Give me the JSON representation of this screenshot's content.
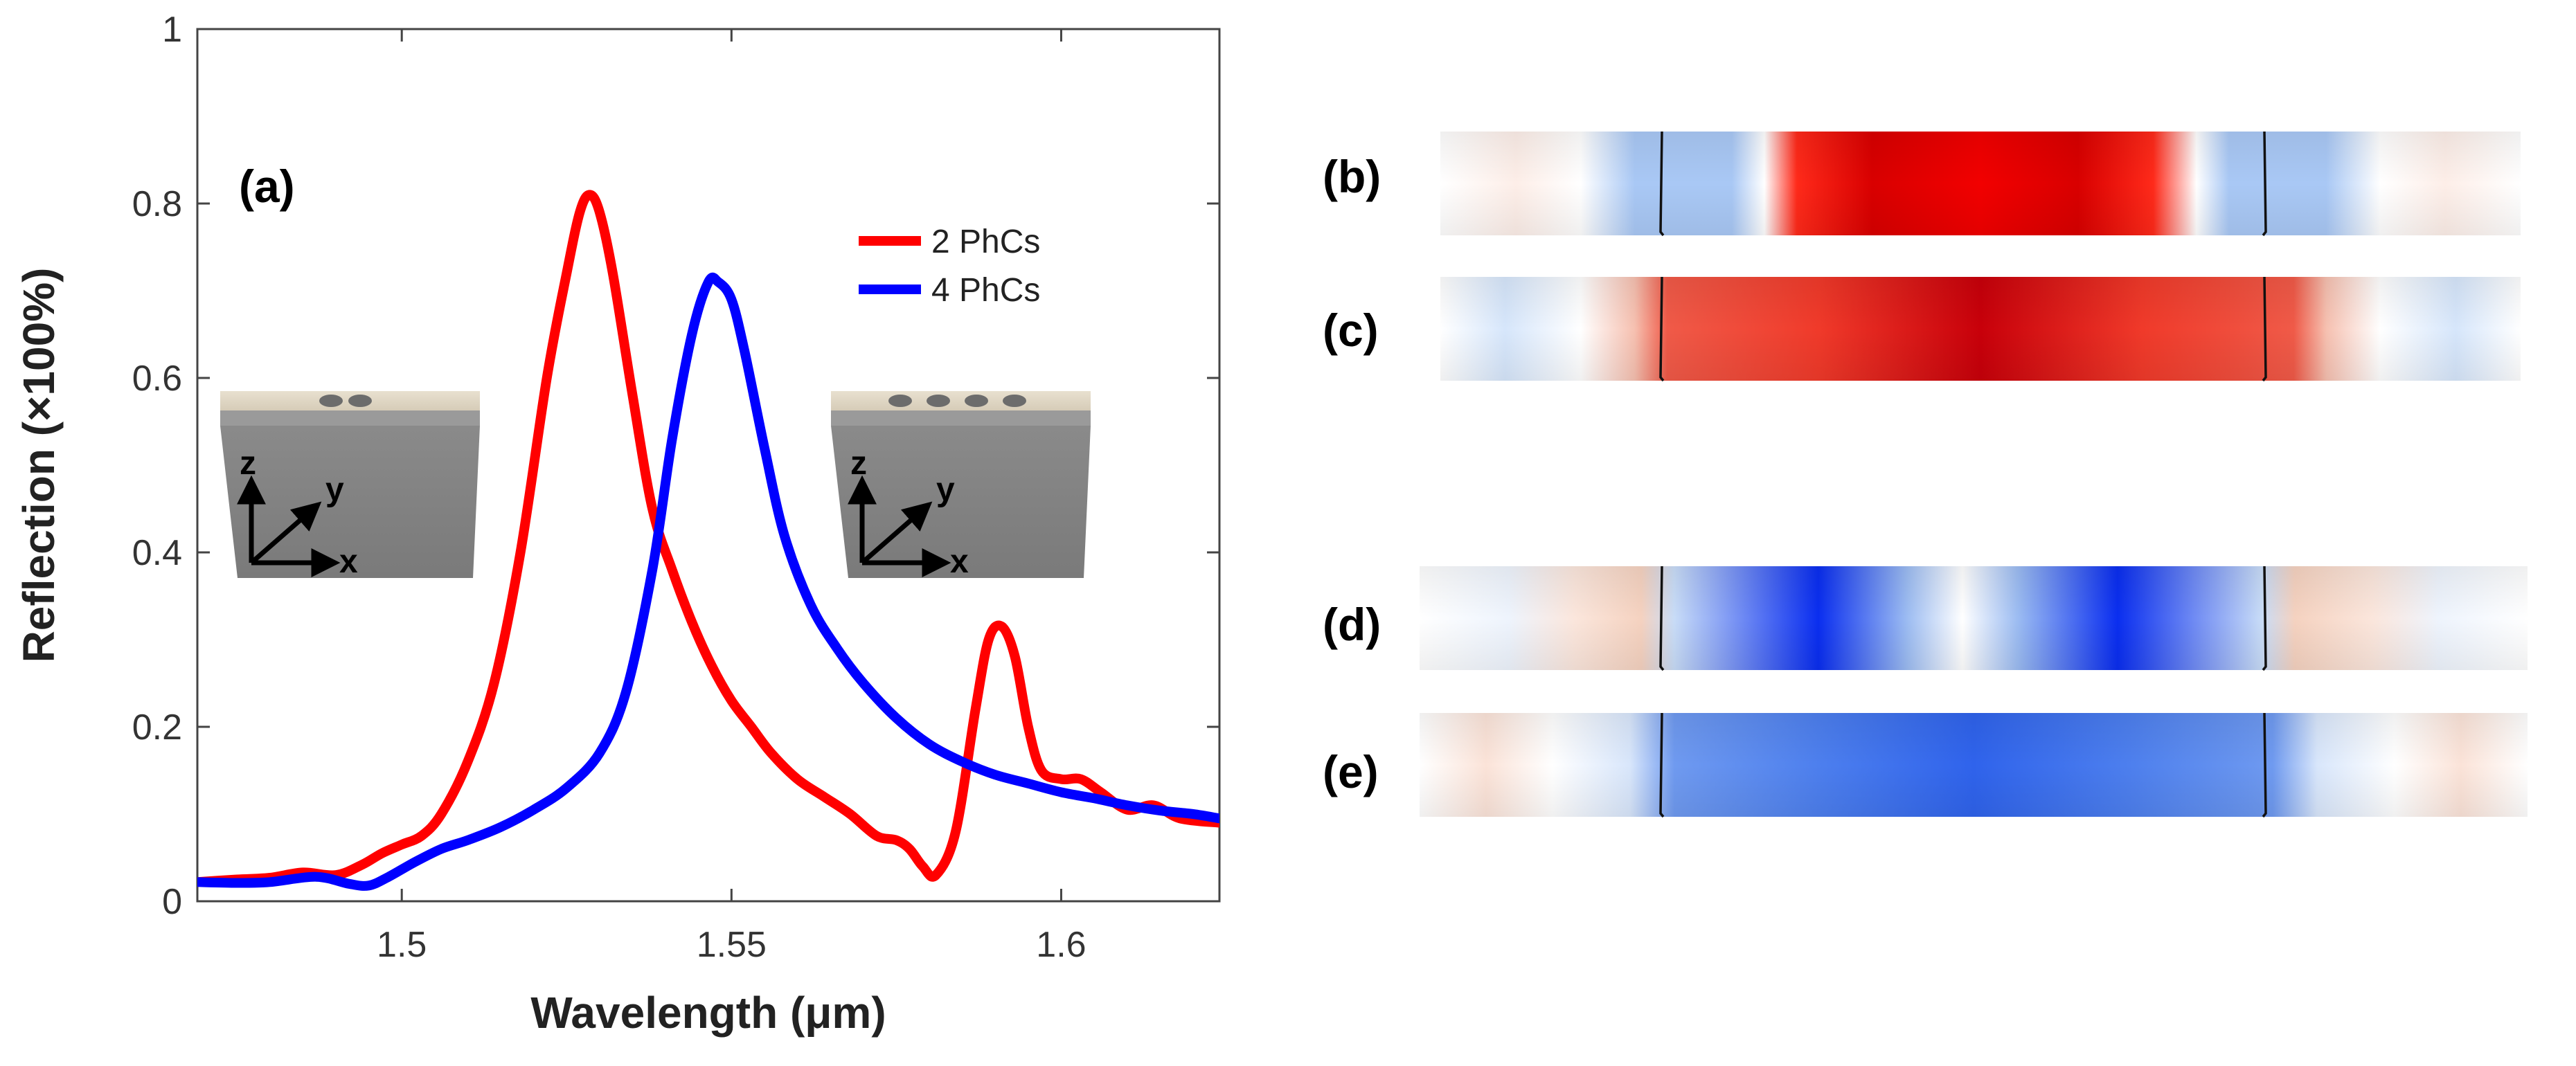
{
  "chart_data": {
    "type": "line",
    "panel_label": "(a)",
    "xlabel": "Wavelength (μm)",
    "ylabel": "Reflection (×100%)",
    "xlim": [
      1.469,
      1.624
    ],
    "ylim": [
      0,
      1
    ],
    "xticks": [
      1.5,
      1.55,
      1.6
    ],
    "xtick_labels": [
      "1.5",
      "1.55",
      "1.6"
    ],
    "yticks": [
      0,
      0.2,
      0.4,
      0.6,
      0.8,
      1
    ],
    "ytick_labels": [
      "0",
      "0.2",
      "0.4",
      "0.6",
      "0.8",
      "1"
    ],
    "grid": false,
    "legend_position": "top-right",
    "series": [
      {
        "name": "2 PhCs",
        "color": "#ff0000",
        "x": [
          1.469,
          1.475,
          1.48,
          1.485,
          1.49,
          1.494,
          1.497,
          1.5,
          1.503,
          1.506,
          1.51,
          1.514,
          1.518,
          1.522,
          1.525,
          1.527,
          1.5285,
          1.53,
          1.532,
          1.535,
          1.538,
          1.541,
          1.544,
          1.547,
          1.55,
          1.553,
          1.556,
          1.56,
          1.564,
          1.568,
          1.572,
          1.575,
          1.577,
          1.579,
          1.581,
          1.584,
          1.587,
          1.589,
          1.591,
          1.593,
          1.595,
          1.597,
          1.6,
          1.603,
          1.606,
          1.61,
          1.614,
          1.618,
          1.624
        ],
        "y": [
          0.022,
          0.025,
          0.027,
          0.033,
          0.03,
          0.042,
          0.055,
          0.065,
          0.075,
          0.1,
          0.16,
          0.25,
          0.4,
          0.6,
          0.72,
          0.79,
          0.81,
          0.79,
          0.72,
          0.58,
          0.45,
          0.38,
          0.32,
          0.27,
          0.23,
          0.2,
          0.17,
          0.14,
          0.12,
          0.1,
          0.075,
          0.07,
          0.06,
          0.04,
          0.03,
          0.08,
          0.22,
          0.3,
          0.315,
          0.28,
          0.2,
          0.15,
          0.14,
          0.14,
          0.125,
          0.105,
          0.11,
          0.095,
          0.09
        ]
      },
      {
        "name": "4 PhCs",
        "color": "#0000ff",
        "x": [
          1.469,
          1.475,
          1.48,
          1.487,
          1.492,
          1.495,
          1.498,
          1.502,
          1.506,
          1.51,
          1.515,
          1.52,
          1.525,
          1.53,
          1.534,
          1.538,
          1.541,
          1.544,
          1.5465,
          1.548,
          1.55,
          1.552,
          1.555,
          1.558,
          1.562,
          1.566,
          1.57,
          1.575,
          1.58,
          1.585,
          1.59,
          1.595,
          1.6,
          1.605,
          1.61,
          1.615,
          1.62,
          1.624
        ],
        "y": [
          0.022,
          0.021,
          0.022,
          0.028,
          0.02,
          0.018,
          0.028,
          0.045,
          0.06,
          0.07,
          0.085,
          0.105,
          0.13,
          0.17,
          0.24,
          0.38,
          0.53,
          0.65,
          0.71,
          0.71,
          0.69,
          0.63,
          0.52,
          0.42,
          0.34,
          0.29,
          0.25,
          0.21,
          0.18,
          0.16,
          0.145,
          0.135,
          0.125,
          0.118,
          0.11,
          0.104,
          0.1,
          0.095
        ]
      }
    ]
  },
  "insets": [
    {
      "axis_labels": {
        "z": "z",
        "y": "y",
        "x": "x"
      },
      "hole_count": 2
    },
    {
      "axis_labels": {
        "z": "z",
        "y": "y",
        "x": "x"
      },
      "hole_count": 4
    }
  ],
  "field_maps": {
    "red_color": "#ff0000",
    "blue_color": "#0033ff",
    "panels": [
      {
        "label": "(b)",
        "type": "field-profile",
        "dominant": "red"
      },
      {
        "label": "(c)",
        "type": "field-profile",
        "dominant": "red"
      },
      {
        "label": "(d)",
        "type": "field-profile",
        "dominant": "blue"
      },
      {
        "label": "(e)",
        "type": "field-profile",
        "dominant": "blue"
      }
    ]
  }
}
